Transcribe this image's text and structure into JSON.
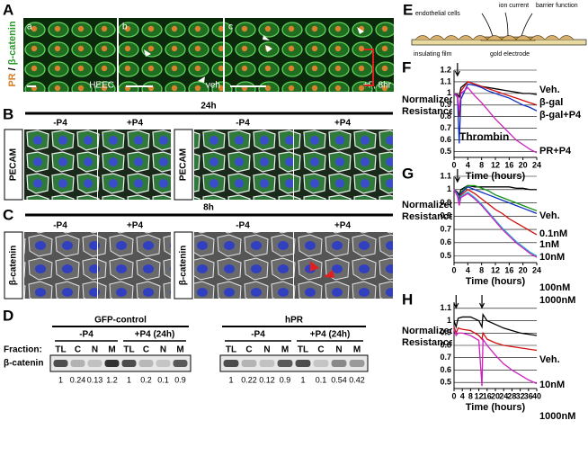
{
  "panel_a": {
    "label": "A",
    "stain": [
      "PR",
      "/",
      "β-catenin"
    ],
    "subpanels": [
      {
        "letter": "a",
        "caption": "HEEC"
      },
      {
        "letter": "b",
        "caption": "veh"
      },
      {
        "letter": "c",
        "caption": "+P, 8hr"
      }
    ]
  },
  "panel_b": {
    "label": "B",
    "time": "24h",
    "conditions": [
      "-P4",
      "+P4",
      "-P4",
      "+P4"
    ],
    "stain": "PECAM"
  },
  "panel_c": {
    "label": "C",
    "time": "8h",
    "conditions": [
      "-P4",
      "+P4",
      "-P4",
      "+P4"
    ],
    "stain": "β-catenin"
  },
  "panel_d": {
    "label": "D",
    "fraction_label": "Fraction:",
    "fractions": [
      "TL",
      "C",
      "N",
      "M"
    ],
    "protein": "β-catenin",
    "groups": [
      {
        "name": "GFP-control",
        "treatments": [
          "-P4",
          "+P4 (24h)"
        ],
        "values": [
          1,
          0.24,
          0.13,
          1.2,
          1,
          0.2,
          0.1,
          0.9
        ]
      },
      {
        "name": "hPR",
        "treatments": [
          "-P4",
          "+P4 (24h)"
        ],
        "values": [
          1,
          0.22,
          0.12,
          0.9,
          1,
          0.1,
          0.54,
          0.42
        ]
      }
    ]
  },
  "panel_e": {
    "label": "E",
    "labels": [
      "endothelial cells",
      "ion current",
      "barrier function",
      "insulating film",
      "gold electrode"
    ]
  },
  "chart_data": [
    {
      "type": "line",
      "panel": "F",
      "ylabel": "Normalized Resistance",
      "xlabel": "Time (hours)",
      "annotation": "Thrombin",
      "arrows_x": [
        1
      ],
      "x": [
        0,
        1,
        1.5,
        2,
        4,
        6,
        8,
        10,
        12,
        14,
        16,
        18,
        20,
        22,
        24
      ],
      "xlim": [
        0,
        24
      ],
      "xticks": [
        0,
        4,
        8,
        12,
        16,
        20,
        24
      ],
      "ylim": [
        0.45,
        1.2
      ],
      "yticks": [
        0.5,
        0.6,
        0.7,
        0.8,
        0.9,
        1,
        1.1,
        1.2
      ],
      "grid": true,
      "series": [
        {
          "name": "Veh.",
          "color": "#000000",
          "values": [
            1.0,
            0.99,
            0.97,
            1.05,
            1.1,
            1.08,
            1.06,
            1.05,
            1.04,
            1.03,
            1.02,
            1.01,
            1.0,
            1.0,
            0.99
          ]
        },
        {
          "name": "β-gal",
          "color": "#d01010",
          "values": [
            1.0,
            0.98,
            0.8,
            1.02,
            1.1,
            1.08,
            1.06,
            1.04,
            1.02,
            1.0,
            0.98,
            0.96,
            0.94,
            0.92,
            0.9
          ]
        },
        {
          "name": "β-gal+P4",
          "color": "#1030c0",
          "values": [
            1.0,
            0.97,
            0.57,
            0.95,
            1.08,
            1.07,
            1.05,
            1.02,
            1.0,
            0.98,
            0.96,
            0.93,
            0.9,
            0.88,
            0.85
          ]
        },
        {
          "name": "PR+P4",
          "color": "#d020c0",
          "values": [
            1.0,
            0.98,
            0.85,
            1.0,
            1.05,
            0.98,
            0.92,
            0.85,
            0.78,
            0.72,
            0.66,
            0.6,
            0.56,
            0.52,
            0.49
          ]
        }
      ]
    },
    {
      "type": "line",
      "panel": "G",
      "ylabel": "Normalized Resistance",
      "xlabel": "Time (hours)",
      "arrows_x": [
        1
      ],
      "x": [
        0,
        1,
        1.5,
        2,
        4,
        6,
        8,
        10,
        12,
        14,
        16,
        18,
        20,
        22,
        24
      ],
      "xlim": [
        0,
        24
      ],
      "xticks": [
        0,
        4,
        8,
        12,
        16,
        20,
        24
      ],
      "ylim": [
        0.45,
        1.1
      ],
      "yticks": [
        0.5,
        0.6,
        0.7,
        0.8,
        0.9,
        1,
        1.1
      ],
      "grid": true,
      "series": [
        {
          "name": "Veh.",
          "color": "#000000",
          "values": [
            1.0,
            0.98,
            0.96,
            1.0,
            1.03,
            1.02,
            1.02,
            1.02,
            1.02,
            1.02,
            1.02,
            1.01,
            1.01,
            1.0,
            1.0
          ]
        },
        {
          "name": "0.1nM",
          "color": "#109010",
          "values": [
            1.0,
            0.97,
            0.93,
            0.98,
            1.03,
            1.03,
            1.01,
            0.99,
            0.96,
            0.94,
            0.92,
            0.9,
            0.88,
            0.86,
            0.84
          ]
        },
        {
          "name": "1nM",
          "color": "#1030c0",
          "values": [
            1.0,
            0.97,
            0.92,
            0.97,
            1.02,
            1.0,
            0.98,
            0.96,
            0.94,
            0.92,
            0.9,
            0.88,
            0.86,
            0.84,
            0.82
          ]
        },
        {
          "name": "10nM",
          "color": "#d01010",
          "values": [
            1.0,
            0.96,
            0.9,
            0.96,
            1.0,
            0.97,
            0.93,
            0.89,
            0.85,
            0.82,
            0.78,
            0.75,
            0.72,
            0.69,
            0.66
          ]
        },
        {
          "name": "100nM",
          "color": "#20b0d0",
          "values": [
            1.0,
            0.96,
            0.9,
            0.95,
            0.98,
            0.94,
            0.89,
            0.83,
            0.77,
            0.71,
            0.66,
            0.61,
            0.57,
            0.53,
            0.5
          ]
        },
        {
          "name": "1000nM",
          "color": "#d020c0",
          "values": [
            1.0,
            0.95,
            0.88,
            0.94,
            0.97,
            0.93,
            0.88,
            0.82,
            0.76,
            0.7,
            0.65,
            0.6,
            0.56,
            0.52,
            0.49
          ]
        }
      ]
    },
    {
      "type": "line",
      "panel": "H",
      "ylabel": "Normalized Resistance",
      "xlabel": "Time (hours)",
      "arrows_x": [
        1,
        13.5
      ],
      "x": [
        0,
        1,
        2,
        4,
        8,
        12,
        13.5,
        14,
        16,
        20,
        24,
        28,
        32,
        36,
        40
      ],
      "xlim": [
        0,
        40
      ],
      "xticks": [
        0,
        4,
        8,
        12,
        16,
        20,
        24,
        28,
        32,
        36,
        40
      ],
      "ylim": [
        0.45,
        1.15
      ],
      "yticks": [
        0.5,
        0.6,
        0.7,
        0.8,
        0.9,
        1,
        1.1
      ],
      "grid": true,
      "series": [
        {
          "name": "Veh.",
          "color": "#000000",
          "values": [
            1.0,
            0.95,
            1.02,
            1.03,
            1.03,
            1.0,
            0.95,
            1.05,
            1.0,
            0.97,
            0.94,
            0.92,
            0.9,
            0.89,
            0.88
          ]
        },
        {
          "name": "10nM",
          "color": "#d01010",
          "values": [
            0.95,
            0.9,
            0.94,
            0.93,
            0.92,
            0.88,
            0.85,
            0.9,
            0.85,
            0.82,
            0.8,
            0.79,
            0.78,
            0.77,
            0.76
          ]
        },
        {
          "name": "1000nM",
          "color": "#d020c0",
          "values": [
            0.93,
            0.88,
            0.9,
            0.9,
            0.88,
            0.84,
            0.47,
            0.85,
            0.8,
            0.72,
            0.65,
            0.6,
            0.56,
            0.52,
            0.49
          ]
        }
      ]
    }
  ]
}
